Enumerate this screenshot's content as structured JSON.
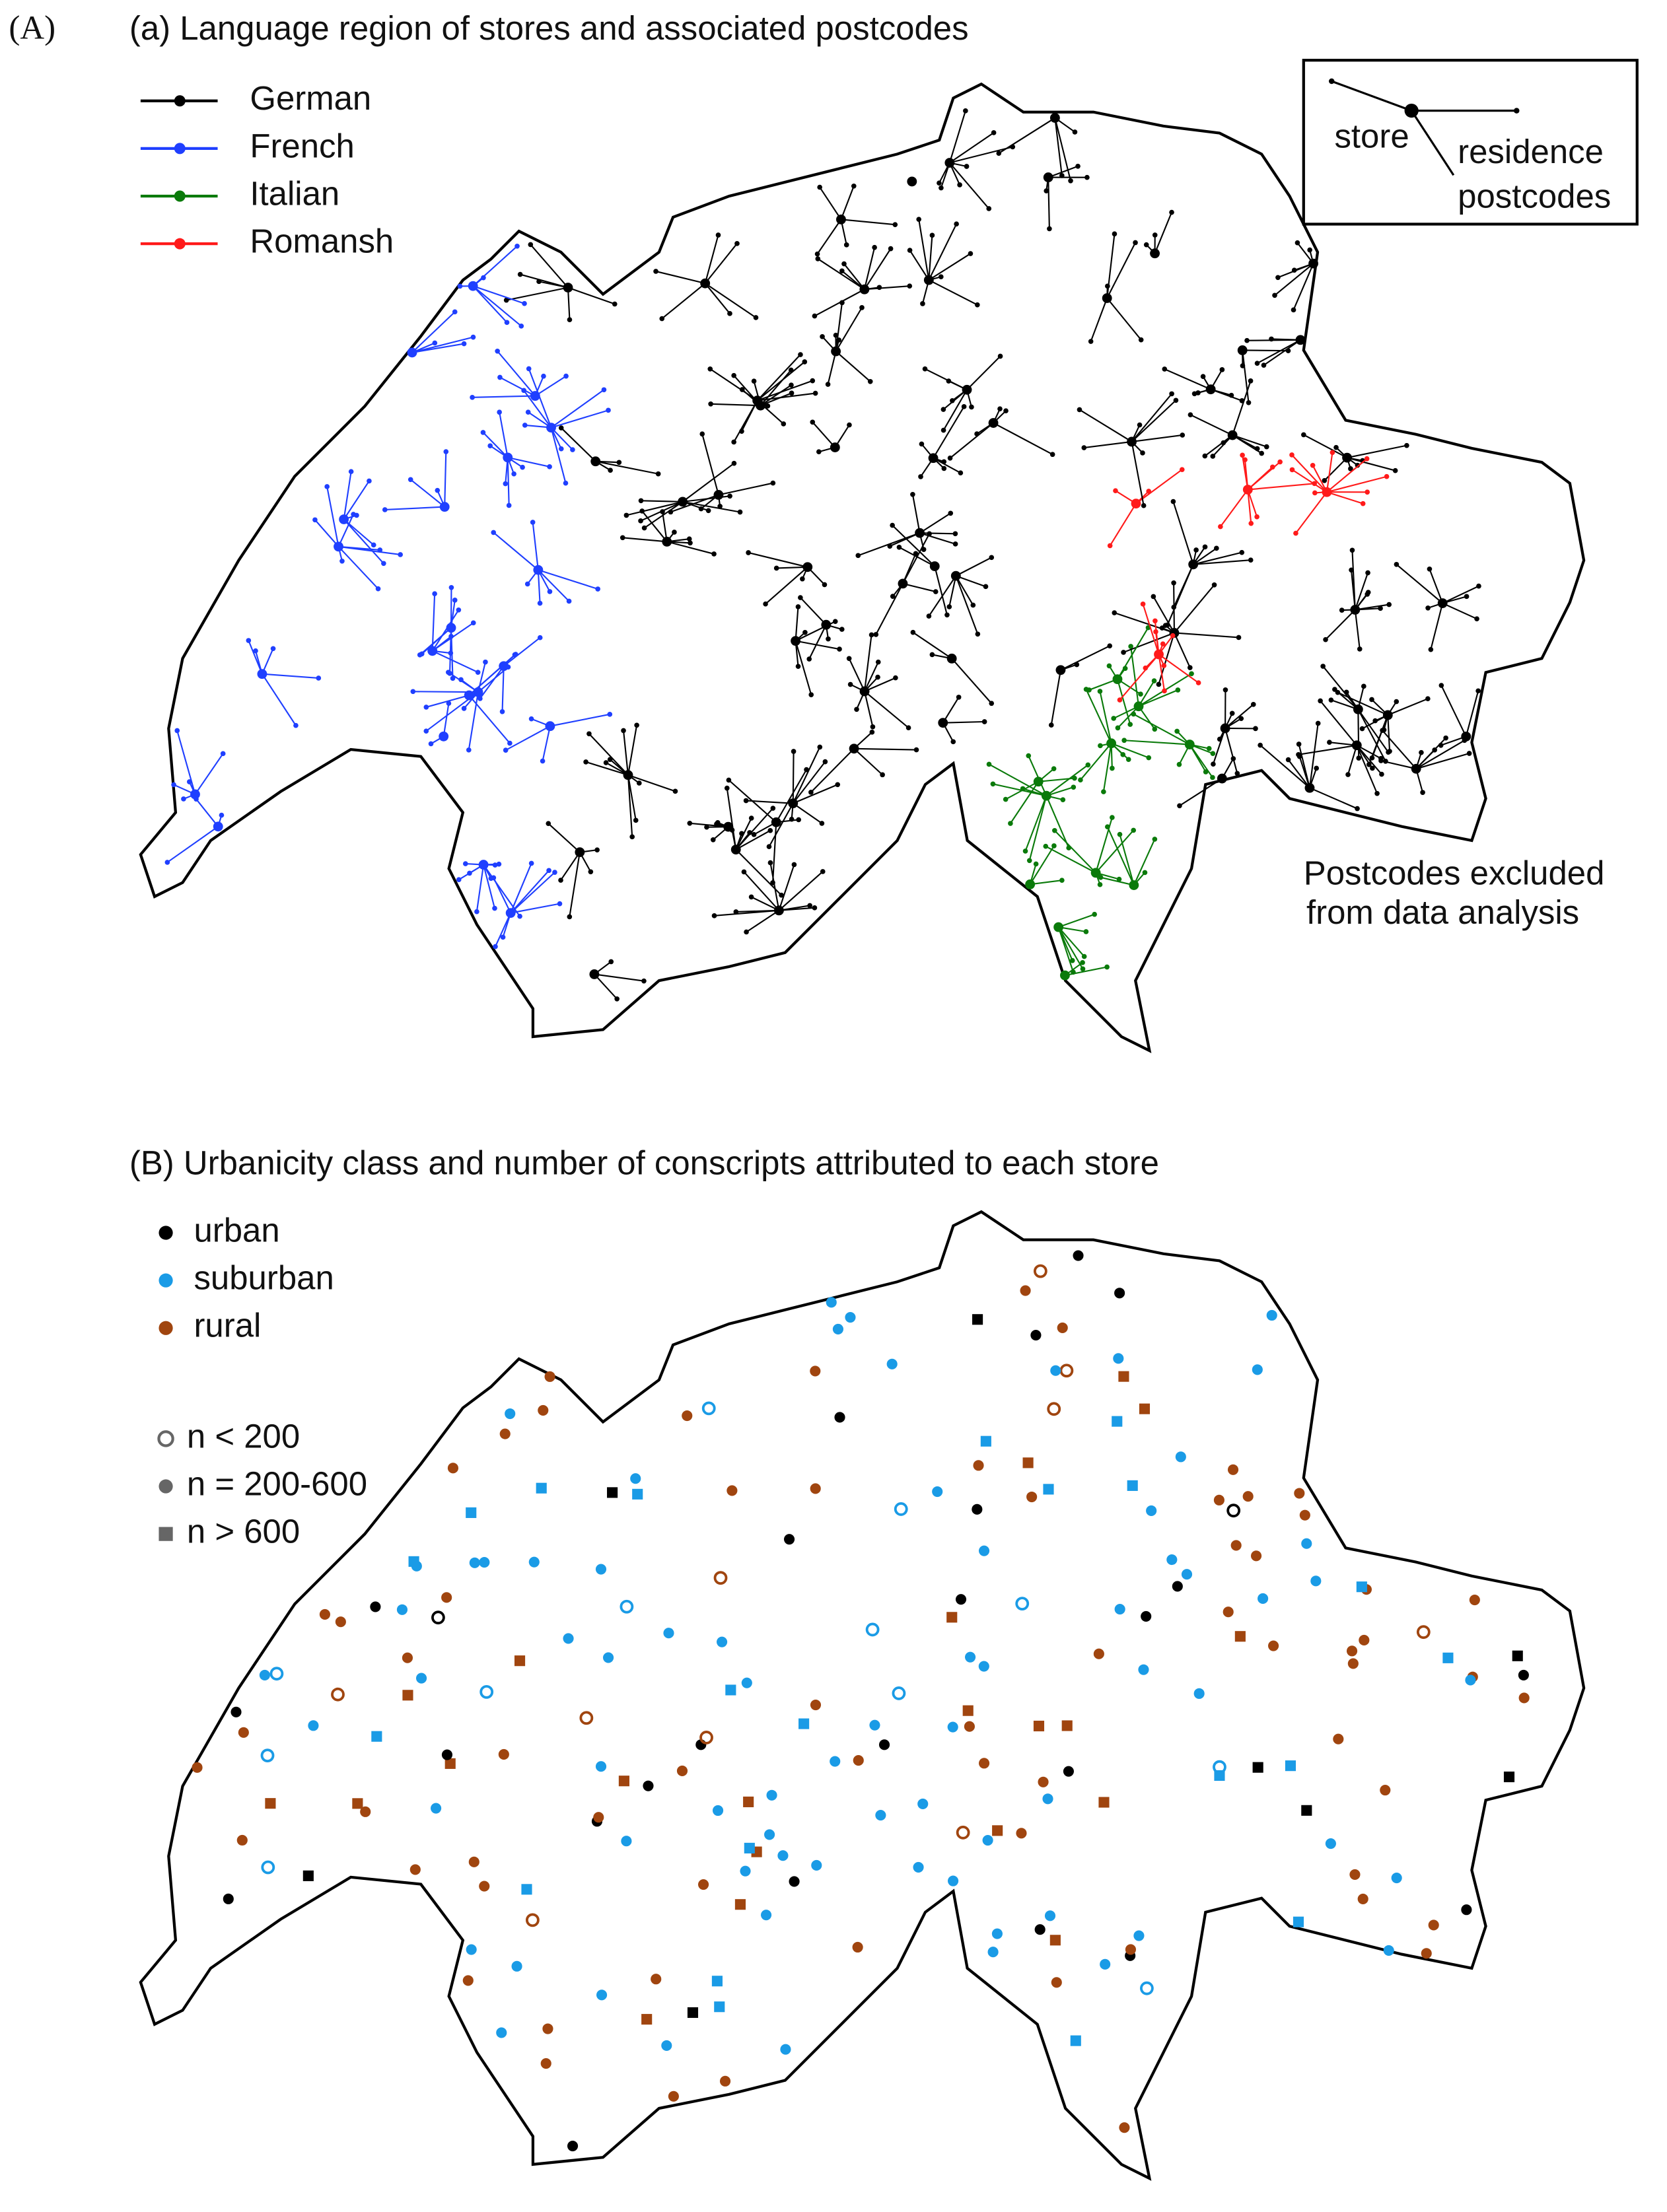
{
  "panel_label": "(A)",
  "panel_a": {
    "title": "(a) Language region of stores and associated postcodes",
    "legend": [
      {
        "name": "German",
        "color": "#000000"
      },
      {
        "name": "French",
        "color": "#1f3fff"
      },
      {
        "name": "Italian",
        "color": "#0a7a0a"
      },
      {
        "name": "Romansh",
        "color": "#ff1a1a"
      }
    ],
    "inset": {
      "store": "store",
      "residence": [
        "residence",
        "postcodes"
      ]
    },
    "note": [
      "Postcodes excluded",
      "from data analysis"
    ]
  },
  "panel_b": {
    "title": "(B) Urbanicity class and number of conscripts attributed to each store",
    "legend": [
      {
        "name": "urban",
        "color": "#000000"
      },
      {
        "name": "suburban",
        "color": "#1a9be6"
      },
      {
        "name": "rural",
        "color": "#a0450f"
      }
    ],
    "size_legend": [
      "n < 200",
      "n = 200-600",
      "n > 600"
    ]
  }
}
